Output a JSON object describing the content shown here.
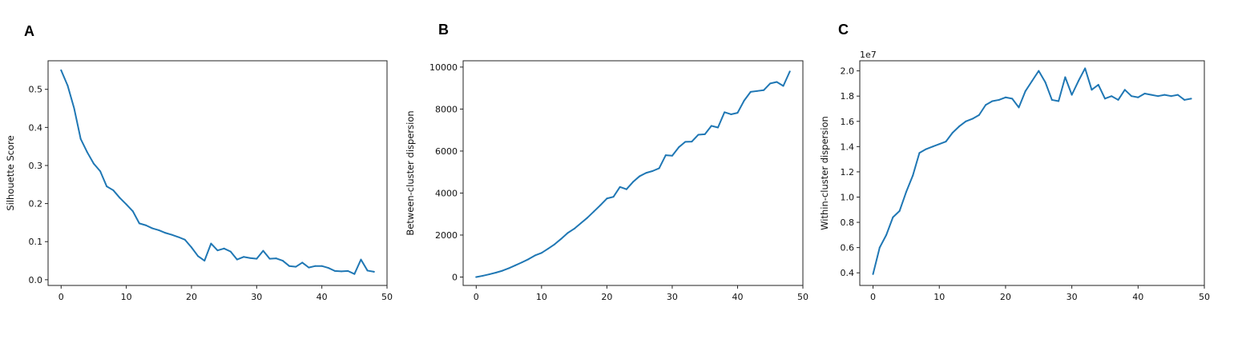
{
  "colors": {
    "series": "#1f77b4",
    "axis": "#222222"
  },
  "chart_data": [
    {
      "type": "line",
      "panel": "A",
      "xlabel": "",
      "ylabel": "Silhouette Score",
      "xlim": [
        -2,
        50
      ],
      "ylim": [
        -0.015,
        0.575
      ],
      "xticks": [
        0,
        10,
        20,
        30,
        40,
        50
      ],
      "xtick_labels": [
        "0",
        "10",
        "20",
        "30",
        "40",
        "50"
      ],
      "yticks": [
        0.0,
        0.1,
        0.2,
        0.3,
        0.4,
        0.5
      ],
      "ytick_labels": [
        "0.0",
        "0.1",
        "0.2",
        "0.3",
        "0.4",
        "0.5"
      ],
      "offset_label": "",
      "grid": false,
      "series": [
        {
          "x": [
            0,
            1,
            2,
            3,
            4,
            5,
            6,
            7,
            8,
            9,
            10,
            11,
            12,
            13,
            14,
            15,
            16,
            17,
            18,
            19,
            20,
            21,
            22,
            23,
            24,
            25,
            26,
            27,
            28,
            29,
            30,
            31,
            32,
            33,
            34,
            35,
            36,
            37,
            38,
            39,
            40,
            41,
            42,
            43,
            44,
            45,
            46,
            47,
            48
          ],
          "y": [
            0.55,
            0.51,
            0.45,
            0.37,
            0.335,
            0.305,
            0.285,
            0.245,
            0.235,
            0.215,
            0.198,
            0.18,
            0.148,
            0.143,
            0.135,
            0.13,
            0.123,
            0.118,
            0.112,
            0.105,
            0.085,
            0.062,
            0.05,
            0.095,
            0.077,
            0.082,
            0.074,
            0.053,
            0.06,
            0.057,
            0.055,
            0.076,
            0.055,
            0.056,
            0.05,
            0.036,
            0.034,
            0.045,
            0.032,
            0.036,
            0.036,
            0.031,
            0.023,
            0.022,
            0.023,
            0.015,
            0.053,
            0.024,
            0.021
          ]
        }
      ]
    },
    {
      "type": "line",
      "panel": "B",
      "xlabel": "",
      "ylabel": "Between-cluster dispersion",
      "xlim": [
        -2,
        50
      ],
      "ylim": [
        -400,
        10300
      ],
      "xticks": [
        0,
        10,
        20,
        30,
        40,
        50
      ],
      "xtick_labels": [
        "0",
        "10",
        "20",
        "30",
        "40",
        "50"
      ],
      "yticks": [
        0,
        2000,
        4000,
        6000,
        8000,
        10000
      ],
      "ytick_labels": [
        "0",
        "2000",
        "4000",
        "6000",
        "8000",
        "10000"
      ],
      "offset_label": "",
      "grid": false,
      "series": [
        {
          "x": [
            0,
            1,
            2,
            3,
            4,
            5,
            6,
            7,
            8,
            9,
            10,
            11,
            12,
            13,
            14,
            15,
            16,
            17,
            18,
            19,
            20,
            21,
            22,
            23,
            24,
            25,
            26,
            27,
            28,
            29,
            30,
            31,
            32,
            33,
            34,
            35,
            36,
            37,
            38,
            39,
            40,
            41,
            42,
            43,
            44,
            45,
            46,
            47,
            48
          ],
          "y": [
            0,
            60,
            130,
            210,
            300,
            420,
            560,
            700,
            850,
            1030,
            1150,
            1350,
            1560,
            1820,
            2100,
            2300,
            2560,
            2820,
            3120,
            3420,
            3740,
            3820,
            4290,
            4180,
            4530,
            4800,
            4960,
            5050,
            5180,
            5800,
            5780,
            6180,
            6440,
            6450,
            6780,
            6800,
            7200,
            7120,
            7850,
            7750,
            7820,
            8400,
            8820,
            8860,
            8900,
            9220,
            9290,
            9100,
            9790
          ]
        }
      ]
    },
    {
      "type": "line",
      "panel": "C",
      "xlabel": "",
      "ylabel": "Within-cluster dispersion",
      "xlim": [
        -2,
        50
      ],
      "ylim": [
        0.3,
        2.08
      ],
      "xticks": [
        0,
        10,
        20,
        30,
        40,
        50
      ],
      "xtick_labels": [
        "0",
        "10",
        "20",
        "30",
        "40",
        "50"
      ],
      "yticks": [
        0.4,
        0.6,
        0.8,
        1.0,
        1.2,
        1.4,
        1.6,
        1.8,
        2.0
      ],
      "ytick_labels": [
        "0.4",
        "0.6",
        "0.8",
        "1.0",
        "1.2",
        "1.4",
        "1.6",
        "1.8",
        "2.0"
      ],
      "offset_label": "1e7",
      "grid": false,
      "series": [
        {
          "x": [
            0,
            1,
            2,
            3,
            4,
            5,
            6,
            7,
            8,
            9,
            10,
            11,
            12,
            13,
            14,
            15,
            16,
            17,
            18,
            19,
            20,
            21,
            22,
            23,
            24,
            25,
            26,
            27,
            28,
            29,
            30,
            31,
            32,
            33,
            34,
            35,
            36,
            37,
            38,
            39,
            40,
            41,
            42,
            43,
            44,
            45,
            46,
            47,
            48
          ],
          "y": [
            0.39,
            0.6,
            0.7,
            0.84,
            0.89,
            1.04,
            1.17,
            1.35,
            1.38,
            1.4,
            1.42,
            1.44,
            1.51,
            1.56,
            1.6,
            1.62,
            1.65,
            1.73,
            1.76,
            1.77,
            1.79,
            1.78,
            1.71,
            1.84,
            1.92,
            2.0,
            1.91,
            1.77,
            1.76,
            1.95,
            1.81,
            1.92,
            2.02,
            1.85,
            1.89,
            1.78,
            1.8,
            1.77,
            1.85,
            1.8,
            1.79,
            1.82,
            1.81,
            1.8,
            1.81,
            1.8,
            1.81,
            1.77,
            1.78
          ]
        }
      ]
    }
  ]
}
